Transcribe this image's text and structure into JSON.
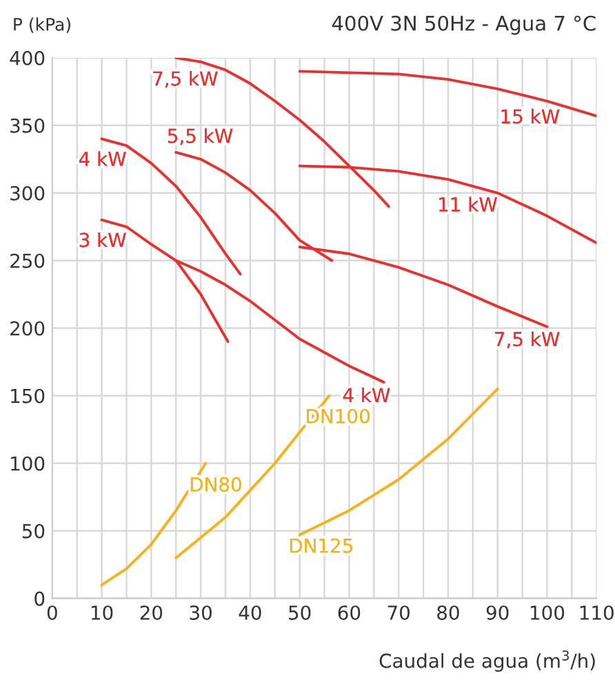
{
  "chart_data": {
    "type": "line",
    "title": "400V 3N 50Hz - Agua 7 °C",
    "xlabel": "Caudal de agua (m$^{3}$/h)",
    "ylabel": "P (kPa)",
    "xlim": [
      0,
      110
    ],
    "ylim": [
      0,
      400
    ],
    "xticks": [
      0,
      {
        "value": 5,
        "label": null
      },
      10,
      {
        "value": 15,
        "label": null
      },
      20,
      {
        "value": 25,
        "label": null
      },
      30,
      {
        "value": 35,
        "label": null
      },
      40,
      {
        "value": 45,
        "label": null
      },
      50,
      {
        "value": 55,
        "label": null
      },
      60,
      {
        "value": 65,
        "label": null
      },
      70,
      {
        "value": 75,
        "label": null
      },
      80,
      {
        "value": 85,
        "label": null
      },
      90,
      {
        "value": 95,
        "label": null
      },
      100,
      {
        "value": 105,
        "label": null
      },
      110
    ],
    "yticks": [
      0,
      50,
      100,
      150,
      200,
      250,
      300,
      350,
      400
    ],
    "grid": true,
    "marker": "none",
    "line_style": "solid",
    "series": [
      {
        "name": "3 kW",
        "color": "#e8312f",
        "x": [
          10,
          15,
          20,
          25,
          30,
          35.5
        ],
        "values": [
          280,
          275,
          262,
          250,
          225,
          190
        ]
      },
      {
        "name": "4 kW",
        "color": "#e8312f",
        "x": [
          10,
          15,
          20,
          25,
          30,
          35,
          38
        ],
        "values": [
          340,
          335,
          322,
          305,
          282,
          255,
          240
        ]
      },
      {
        "name": "4 kW",
        "color": "#e8312f",
        "x": [
          25,
          30,
          35,
          40,
          45,
          50,
          55,
          60,
          67
        ],
        "values": [
          250,
          242,
          232,
          220,
          206,
          192,
          182,
          172,
          160
        ]
      },
      {
        "name": "5,5 kW",
        "color": "#e8312f",
        "x": [
          25,
          30,
          35,
          40,
          45,
          50,
          56.5
        ],
        "values": [
          330,
          325,
          315,
          302,
          285,
          265,
          250
        ]
      },
      {
        "name": "7,5 kW",
        "color": "#e8312f",
        "x": [
          25,
          30,
          35,
          40,
          45,
          50,
          55,
          60,
          65,
          68
        ],
        "values": [
          400,
          397,
          391,
          381,
          368,
          354,
          338,
          320,
          302,
          290
        ]
      },
      {
        "name": "15 kW",
        "color": "#e8312f",
        "x": [
          50,
          60,
          70,
          80,
          90,
          100,
          110
        ],
        "values": [
          390,
          389,
          388,
          384,
          377,
          368,
          357
        ]
      },
      {
        "name": "11 kW",
        "color": "#e8312f",
        "x": [
          50,
          60,
          70,
          80,
          90,
          100,
          110
        ],
        "values": [
          320,
          319,
          316,
          310,
          300,
          283,
          263
        ]
      },
      {
        "name": "7,5 kW",
        "color": "#e8312f",
        "x": [
          50,
          60,
          70,
          80,
          90,
          100
        ],
        "values": [
          260,
          255,
          245,
          232,
          216,
          201
        ]
      },
      {
        "name": "DN80",
        "color": "#f6b219",
        "x": [
          10,
          15,
          20,
          25,
          31
        ],
        "values": [
          10,
          22,
          40,
          65,
          100
        ]
      },
      {
        "name": "DN100",
        "color": "#f6b219",
        "x": [
          25,
          30,
          35,
          40,
          45,
          50,
          56
        ],
        "values": [
          30,
          45,
          60,
          80,
          100,
          123,
          150
        ]
      },
      {
        "name": "DN125",
        "color": "#f6b219",
        "x": [
          50,
          60,
          70,
          80,
          90
        ],
        "values": [
          47,
          65,
          88,
          118,
          155
        ]
      }
    ]
  }
}
